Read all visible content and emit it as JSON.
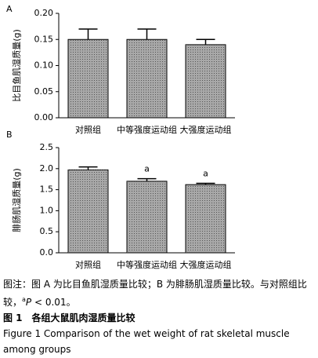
{
  "chart_data": [
    {
      "type": "bar",
      "panel": "A",
      "ylabel": "比目鱼肌湿质量(g)",
      "categories": [
        "对照组",
        "中等强度运动组",
        "大强度运动组"
      ],
      "series": [
        {
          "color": "#a8a8a8",
          "values": [
            0.15,
            0.15,
            0.14
          ],
          "errors": [
            0.02,
            0.02,
            0.01
          ]
        }
      ],
      "ylim": [
        0,
        0.2
      ],
      "yticks": [
        {
          "value": 0,
          "label": "0.00"
        },
        0.05,
        {
          "value": 0.1,
          "label": "0.10"
        },
        0.15,
        {
          "value": 0.2,
          "label": "0.20"
        }
      ]
    },
    {
      "type": "bar",
      "panel": "B",
      "ylabel": "腓肠肌湿质量(g)",
      "categories": [
        "对照组",
        "中等强度运动组",
        "大强度运动组"
      ],
      "series": [
        {
          "color": "#a8a8a8",
          "values": [
            1.97,
            1.7,
            1.62
          ],
          "errors": [
            0.07,
            0.06,
            0.03
          ]
        }
      ],
      "annotations": [
        null,
        "a",
        "a"
      ],
      "ylim": [
        0,
        2.5
      ],
      "yticks": [
        {
          "value": 0,
          "label": "0.0"
        },
        0.5,
        {
          "value": 1,
          "label": "1.0"
        },
        1.5,
        {
          "value": 2,
          "label": "2.0"
        },
        2.5
      ]
    }
  ],
  "figure_notes": {
    "note_start": "图注：图 A 为比目鱼肌湿质量比较；B 为腓肠肌湿质量比较。与对照组比较，",
    "note_sup": "a",
    "note_p": "P",
    "note_end": " < 0.01。",
    "title_cn": "图 1　各组大鼠肌肉湿质量比较",
    "title_en": "Figure 1    Comparison of the wet weight of rat skeletal muscle among groups"
  }
}
